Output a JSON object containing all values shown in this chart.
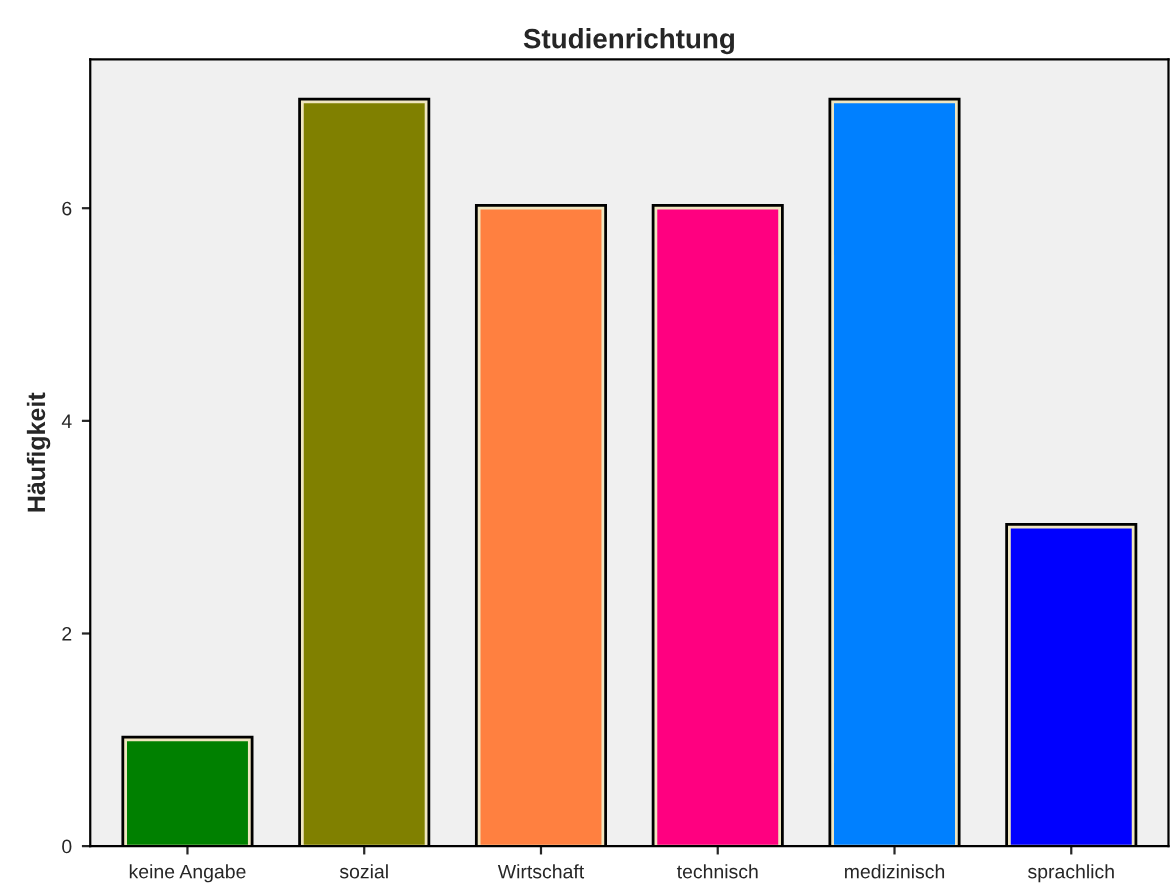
{
  "chart_data": {
    "type": "bar",
    "title": "Studienrichtung",
    "ylabel": "Häufigkeit",
    "categories": [
      "keine Angabe",
      "sozial",
      "Wirtschaft",
      "technisch",
      "medizinisch",
      "sprachlich"
    ],
    "values": [
      1,
      7,
      6,
      6,
      7,
      3
    ],
    "colors": [
      "#008000",
      "#808000",
      "#ff8040",
      "#ff0080",
      "#0080ff",
      "#0000ff"
    ],
    "ylim": [
      0,
      7.4
    ],
    "yticks": [
      0,
      2,
      4,
      6
    ],
    "grid": false,
    "legend": false
  }
}
